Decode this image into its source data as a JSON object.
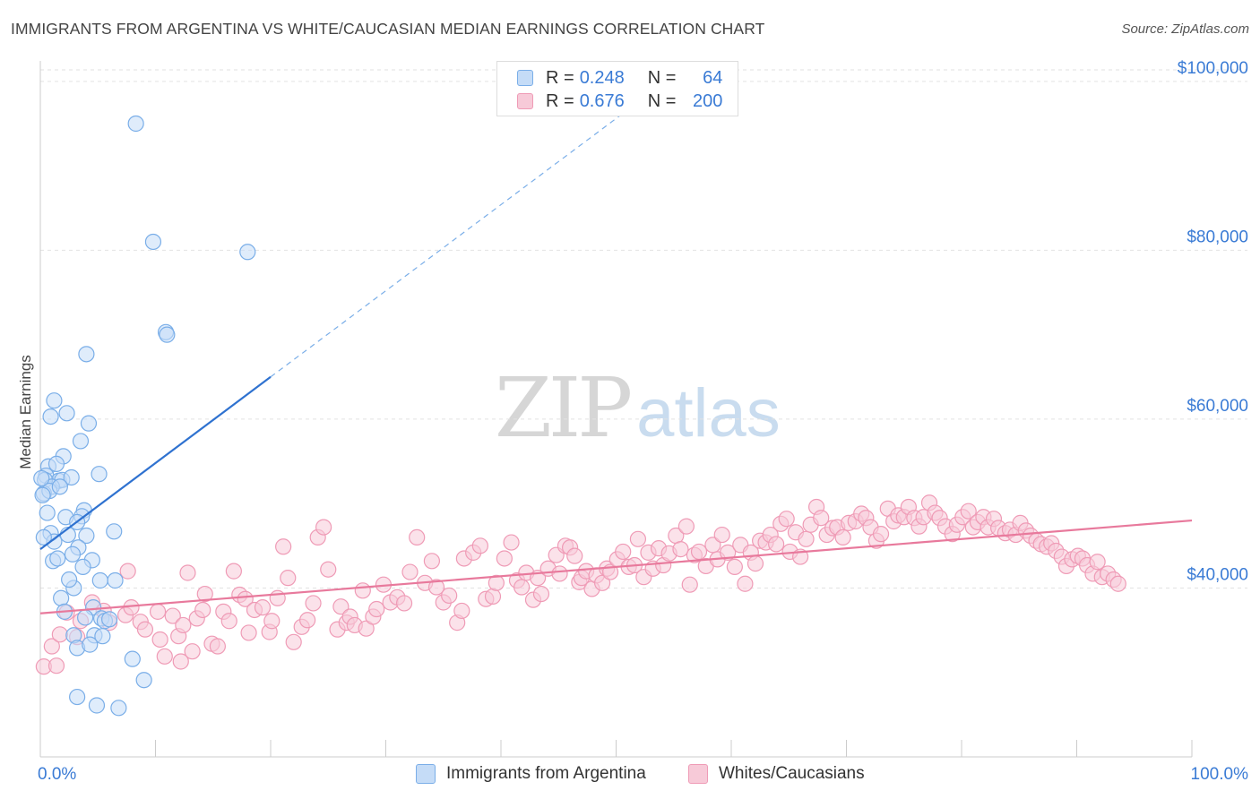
{
  "title": "IMMIGRANTS FROM ARGENTINA VS WHITE/CAUCASIAN MEDIAN EARNINGS CORRELATION CHART",
  "source": "Source: ZipAtlas.com",
  "watermark": {
    "zip": "ZIP",
    "atlas": "atlas"
  },
  "legend_top": [
    {
      "r_label": "R =",
      "r_value": "0.248",
      "n_label": "N =",
      "n_value": "64",
      "color": "#3a7bd5"
    },
    {
      "r_label": "R =",
      "r_value": "0.676",
      "n_label": "N =",
      "n_value": "200",
      "color": "#e8799c"
    }
  ],
  "legend_bottom": [
    "Immigrants from Argentina",
    "Whites/Caucasians"
  ],
  "chart_data": {
    "type": "scatter",
    "title": "IMMIGRANTS FROM ARGENTINA VS WHITE/CAUCASIAN MEDIAN EARNINGS CORRELATION CHART",
    "xlabel": "",
    "ylabel": "Median Earnings",
    "xlim": [
      0,
      100
    ],
    "ylim": [
      20000,
      102000
    ],
    "x_tick_labels": [
      "0.0%",
      "100.0%"
    ],
    "y_ticks": [
      40000,
      60000,
      80000,
      100000
    ],
    "y_tick_labels": [
      "$40,000",
      "$60,000",
      "$80,000",
      "$100,000"
    ],
    "grid": true,
    "legend_position": "top-center",
    "series": [
      {
        "name": "Immigrants from Argentina",
        "color": "#7aaee8",
        "fill": "#c5dcf7",
        "trend": {
          "x": [
            0,
            20
          ],
          "y": [
            44600,
            65000
          ],
          "extend_to_x": 52,
          "dashed_extension": true
        },
        "points": [
          [
            8.3,
            95000
          ],
          [
            9.8,
            81000
          ],
          [
            18.0,
            79800
          ],
          [
            10.9,
            70300
          ],
          [
            11.0,
            70000
          ],
          [
            4.0,
            67700
          ],
          [
            1.2,
            62200
          ],
          [
            0.9,
            60300
          ],
          [
            2.3,
            60700
          ],
          [
            4.2,
            59500
          ],
          [
            3.5,
            57400
          ],
          [
            2.0,
            55600
          ],
          [
            0.7,
            54400
          ],
          [
            1.4,
            54700
          ],
          [
            0.5,
            53300
          ],
          [
            1.6,
            52700
          ],
          [
            0.4,
            52800
          ],
          [
            1.9,
            52800
          ],
          [
            1.0,
            52000
          ],
          [
            2.7,
            53100
          ],
          [
            5.1,
            53500
          ],
          [
            0.3,
            51200
          ],
          [
            0.8,
            51500
          ],
          [
            1.7,
            52000
          ],
          [
            0.2,
            51000
          ],
          [
            3.8,
            49200
          ],
          [
            2.2,
            48400
          ],
          [
            0.6,
            48900
          ],
          [
            3.6,
            48500
          ],
          [
            3.2,
            47800
          ],
          [
            6.4,
            46700
          ],
          [
            0.9,
            46500
          ],
          [
            2.4,
            46300
          ],
          [
            4.0,
            46200
          ],
          [
            1.2,
            45500
          ],
          [
            3.3,
            44800
          ],
          [
            2.8,
            44000
          ],
          [
            4.5,
            43300
          ],
          [
            1.1,
            43200
          ],
          [
            3.7,
            42500
          ],
          [
            5.2,
            40900
          ],
          [
            6.5,
            40900
          ],
          [
            2.9,
            40000
          ],
          [
            1.8,
            38800
          ],
          [
            4.6,
            37700
          ],
          [
            2.1,
            37200
          ],
          [
            5.3,
            36400
          ],
          [
            5.6,
            36100
          ],
          [
            6.0,
            36300
          ],
          [
            4.7,
            34400
          ],
          [
            2.9,
            34400
          ],
          [
            5.4,
            34300
          ],
          [
            3.2,
            32900
          ],
          [
            4.3,
            33300
          ],
          [
            8.0,
            31600
          ],
          [
            9.0,
            29100
          ],
          [
            3.2,
            27100
          ],
          [
            4.9,
            26100
          ],
          [
            6.8,
            25800
          ],
          [
            0.1,
            53000
          ],
          [
            1.5,
            43500
          ],
          [
            2.5,
            41000
          ],
          [
            0.3,
            46000
          ],
          [
            3.9,
            36500
          ]
        ]
      },
      {
        "name": "Whites/Caucasians",
        "color": "#ef9bb6",
        "fill": "#f7cad8",
        "trend": {
          "x": [
            0,
            100
          ],
          "y": [
            37000,
            48000
          ]
        },
        "points": [
          [
            0.3,
            30700
          ],
          [
            1.4,
            30800
          ],
          [
            1.0,
            33100
          ],
          [
            1.7,
            34500
          ],
          [
            3.2,
            34200
          ],
          [
            2.3,
            37100
          ],
          [
            3.5,
            36100
          ],
          [
            4.5,
            38300
          ],
          [
            5.5,
            37300
          ],
          [
            6.0,
            35900
          ],
          [
            7.4,
            36800
          ],
          [
            8.7,
            36000
          ],
          [
            7.6,
            42000
          ],
          [
            7.9,
            37700
          ],
          [
            9.1,
            35100
          ],
          [
            10.4,
            33900
          ],
          [
            10.2,
            37200
          ],
          [
            10.8,
            31900
          ],
          [
            11.5,
            36700
          ],
          [
            12.0,
            34300
          ],
          [
            12.4,
            35600
          ],
          [
            12.2,
            31300
          ],
          [
            13.2,
            32500
          ],
          [
            12.8,
            41800
          ],
          [
            13.6,
            36400
          ],
          [
            14.1,
            37400
          ],
          [
            14.3,
            39300
          ],
          [
            14.9,
            33400
          ],
          [
            15.4,
            33100
          ],
          [
            15.9,
            37200
          ],
          [
            16.4,
            36100
          ],
          [
            16.8,
            42000
          ],
          [
            17.3,
            39200
          ],
          [
            17.8,
            38700
          ],
          [
            18.1,
            34700
          ],
          [
            18.6,
            37400
          ],
          [
            19.3,
            37700
          ],
          [
            19.9,
            34800
          ],
          [
            20.1,
            36100
          ],
          [
            20.6,
            38800
          ],
          [
            21.1,
            44900
          ],
          [
            21.5,
            41200
          ],
          [
            22.0,
            33600
          ],
          [
            22.7,
            35400
          ],
          [
            23.2,
            36200
          ],
          [
            23.7,
            38200
          ],
          [
            24.1,
            46000
          ],
          [
            24.6,
            47200
          ],
          [
            25.0,
            42200
          ],
          [
            25.8,
            35100
          ],
          [
            26.1,
            37800
          ],
          [
            26.6,
            35900
          ],
          [
            26.9,
            36600
          ],
          [
            27.3,
            35600
          ],
          [
            28.0,
            39700
          ],
          [
            28.3,
            35200
          ],
          [
            28.9,
            36600
          ],
          [
            29.2,
            37500
          ],
          [
            29.8,
            40400
          ],
          [
            30.4,
            38300
          ],
          [
            31.0,
            38900
          ],
          [
            31.6,
            38200
          ],
          [
            32.1,
            41900
          ],
          [
            32.7,
            46000
          ],
          [
            33.4,
            40600
          ],
          [
            34.0,
            43200
          ],
          [
            34.4,
            40100
          ],
          [
            35.0,
            38300
          ],
          [
            35.5,
            39100
          ],
          [
            36.2,
            35900
          ],
          [
            36.6,
            37300
          ],
          [
            36.8,
            43500
          ],
          [
            37.6,
            44200
          ],
          [
            38.2,
            45000
          ],
          [
            38.7,
            38700
          ],
          [
            39.3,
            39000
          ],
          [
            39.6,
            40600
          ],
          [
            40.3,
            43500
          ],
          [
            40.9,
            45400
          ],
          [
            41.4,
            40900
          ],
          [
            41.8,
            40100
          ],
          [
            42.2,
            41800
          ],
          [
            42.8,
            38600
          ],
          [
            43.2,
            41200
          ],
          [
            43.5,
            39300
          ],
          [
            44.1,
            42300
          ],
          [
            44.8,
            43900
          ],
          [
            45.1,
            41700
          ],
          [
            45.6,
            45000
          ],
          [
            46.0,
            44800
          ],
          [
            46.4,
            43800
          ],
          [
            46.8,
            40700
          ],
          [
            47.0,
            41200
          ],
          [
            47.4,
            42000
          ],
          [
            47.9,
            39900
          ],
          [
            48.3,
            41500
          ],
          [
            48.8,
            40600
          ],
          [
            49.2,
            42300
          ],
          [
            49.5,
            41900
          ],
          [
            50.1,
            43400
          ],
          [
            50.6,
            44300
          ],
          [
            51.1,
            42500
          ],
          [
            51.6,
            42700
          ],
          [
            51.9,
            45800
          ],
          [
            52.4,
            41300
          ],
          [
            52.8,
            44200
          ],
          [
            53.2,
            42300
          ],
          [
            53.7,
            44700
          ],
          [
            54.1,
            42700
          ],
          [
            54.6,
            44100
          ],
          [
            55.2,
            46200
          ],
          [
            55.6,
            44600
          ],
          [
            56.1,
            47300
          ],
          [
            56.4,
            40400
          ],
          [
            56.8,
            43900
          ],
          [
            57.2,
            44300
          ],
          [
            57.8,
            42600
          ],
          [
            58.4,
            45100
          ],
          [
            58.8,
            43400
          ],
          [
            59.2,
            46300
          ],
          [
            59.7,
            44200
          ],
          [
            60.3,
            42500
          ],
          [
            60.8,
            45100
          ],
          [
            61.2,
            40500
          ],
          [
            61.7,
            44200
          ],
          [
            62.1,
            42900
          ],
          [
            62.5,
            45600
          ],
          [
            63.0,
            45400
          ],
          [
            63.4,
            46300
          ],
          [
            63.9,
            45200
          ],
          [
            64.3,
            47600
          ],
          [
            64.8,
            48200
          ],
          [
            65.1,
            44300
          ],
          [
            65.6,
            46600
          ],
          [
            66.0,
            43700
          ],
          [
            66.5,
            45800
          ],
          [
            66.9,
            47500
          ],
          [
            67.4,
            49600
          ],
          [
            67.8,
            48300
          ],
          [
            68.3,
            46300
          ],
          [
            68.8,
            47100
          ],
          [
            69.2,
            47200
          ],
          [
            69.7,
            46000
          ],
          [
            70.2,
            47700
          ],
          [
            70.8,
            47900
          ],
          [
            71.3,
            48800
          ],
          [
            71.7,
            48300
          ],
          [
            72.1,
            47200
          ],
          [
            72.6,
            45600
          ],
          [
            73.0,
            46400
          ],
          [
            73.6,
            49400
          ],
          [
            74.1,
            47900
          ],
          [
            74.5,
            48600
          ],
          [
            75.0,
            48400
          ],
          [
            75.4,
            49600
          ],
          [
            75.9,
            48300
          ],
          [
            76.3,
            47300
          ],
          [
            76.7,
            48400
          ],
          [
            77.2,
            50100
          ],
          [
            77.7,
            48900
          ],
          [
            78.1,
            48300
          ],
          [
            78.6,
            47300
          ],
          [
            79.2,
            46400
          ],
          [
            79.6,
            47500
          ],
          [
            80.1,
            48400
          ],
          [
            80.6,
            49100
          ],
          [
            81.0,
            47200
          ],
          [
            81.4,
            47800
          ],
          [
            81.9,
            48400
          ],
          [
            82.3,
            47200
          ],
          [
            82.8,
            48200
          ],
          [
            83.2,
            47100
          ],
          [
            83.8,
            46500
          ],
          [
            84.2,
            46900
          ],
          [
            84.7,
            46300
          ],
          [
            85.1,
            47700
          ],
          [
            85.6,
            46800
          ],
          [
            86.0,
            46200
          ],
          [
            86.5,
            45600
          ],
          [
            86.9,
            45200
          ],
          [
            87.4,
            44900
          ],
          [
            87.8,
            45300
          ],
          [
            88.2,
            44400
          ],
          [
            88.7,
            43700
          ],
          [
            89.1,
            42600
          ],
          [
            89.6,
            43400
          ],
          [
            90.1,
            43800
          ],
          [
            90.5,
            43500
          ],
          [
            90.9,
            42700
          ],
          [
            91.4,
            41700
          ],
          [
            91.8,
            43100
          ],
          [
            92.2,
            41300
          ],
          [
            92.7,
            41700
          ],
          [
            93.2,
            41000
          ],
          [
            93.6,
            40500
          ]
        ]
      }
    ]
  }
}
